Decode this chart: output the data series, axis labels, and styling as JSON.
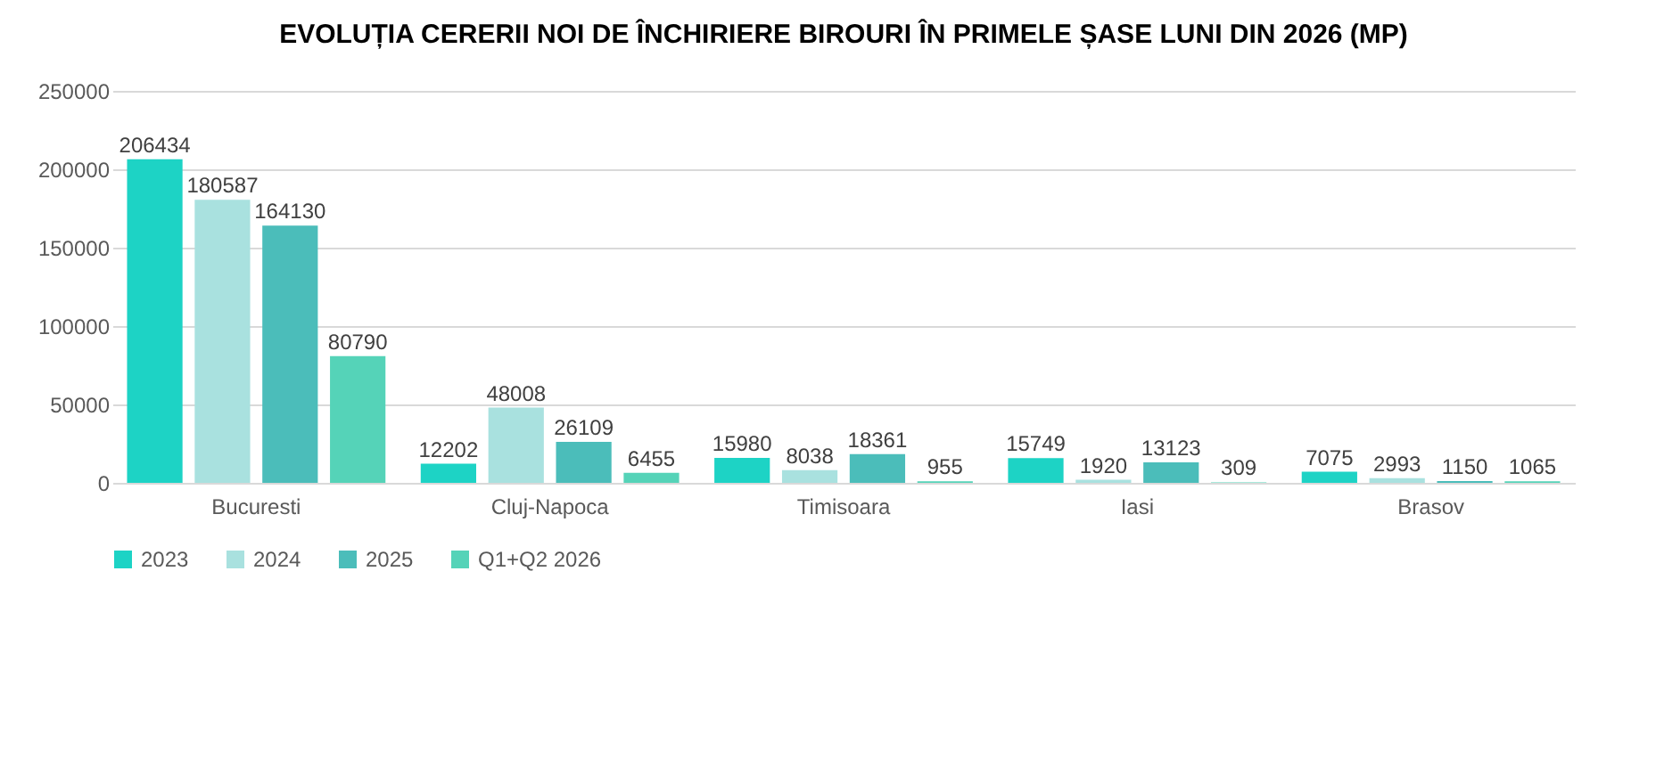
{
  "chart_data": {
    "type": "bar",
    "title": "EVOLUȚIA CERERII NOI DE ÎNCHIRIERE BIROURI ÎN PRIMELE ȘASE LUNI DIN 2026 (MP)",
    "categories": [
      "Bucuresti",
      "Cluj-Napoca",
      "Timisoara",
      "Iasi",
      "Brasov"
    ],
    "series": [
      {
        "name": "2023",
        "color": "#1dd3c5",
        "values": [
          206434,
          12202,
          15980,
          15749,
          7075
        ]
      },
      {
        "name": "2024",
        "color": "#a9e1df",
        "values": [
          180587,
          48008,
          8038,
          1920,
          2993
        ]
      },
      {
        "name": "2025",
        "color": "#4bbdba",
        "values": [
          164130,
          26109,
          18361,
          13123,
          1150
        ]
      },
      {
        "name": "Q1+Q2 2026",
        "color": "#55d3b8",
        "values": [
          80790,
          6455,
          955,
          309,
          1065
        ]
      }
    ],
    "ylim": [
      0,
      250000
    ],
    "yticks": [
      0,
      50000,
      100000,
      150000,
      200000,
      250000
    ],
    "grid": "y",
    "legend": "bottom",
    "data_labels": true
  }
}
